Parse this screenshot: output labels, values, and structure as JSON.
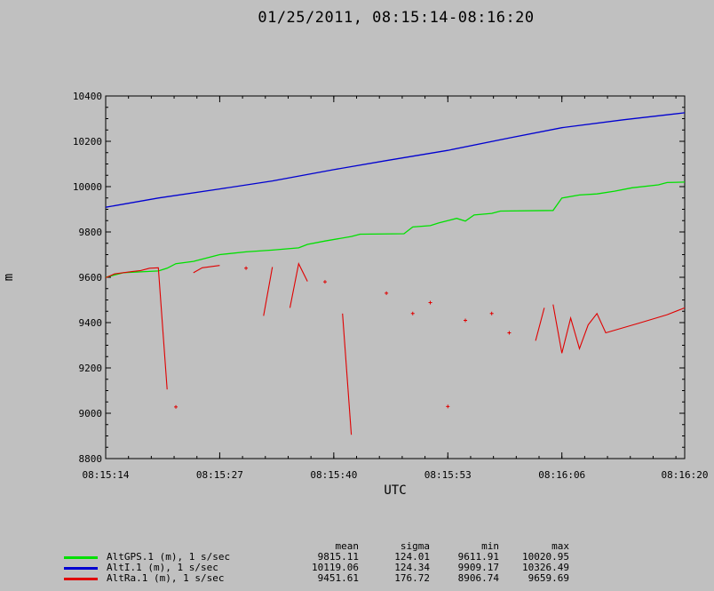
{
  "title": "01/25/2011, 08:15:14-08:16:20",
  "chart_data": {
    "type": "line",
    "xlabel": "UTC",
    "ylabel": "m",
    "xlim": [
      "08:15:14",
      "08:16:20"
    ],
    "ylim": [
      8800,
      10400
    ],
    "x_ticks": [
      "08:15:14",
      "08:15:27",
      "08:15:40",
      "08:15:53",
      "08:16:06",
      "08:16:20"
    ],
    "y_ticks": [
      8800,
      9000,
      9200,
      9400,
      9600,
      9800,
      10000,
      10200,
      10400
    ],
    "legend_position": "bottom-left",
    "series": [
      {
        "name": "AltGPS.1 (m), 1 s/sec",
        "color": "#00e000",
        "points": [
          [
            "08:15:14",
            9600
          ],
          [
            "08:15:16",
            9620
          ],
          [
            "08:15:20",
            9628
          ],
          [
            "08:15:21",
            9640
          ],
          [
            "08:15:22",
            9660
          ],
          [
            "08:15:24",
            9670
          ],
          [
            "08:15:27",
            9700
          ],
          [
            "08:15:30",
            9712
          ],
          [
            "08:15:33",
            9720
          ],
          [
            "08:15:36",
            9730
          ],
          [
            "08:15:37",
            9745
          ],
          [
            "08:15:39",
            9760
          ],
          [
            "08:15:42",
            9780
          ],
          [
            "08:15:43",
            9790
          ],
          [
            "08:15:48",
            9792
          ],
          [
            "08:15:49",
            9822
          ],
          [
            "08:15:51",
            9828
          ],
          [
            "08:15:52",
            9840
          ],
          [
            "08:15:53",
            9850
          ],
          [
            "08:15:54",
            9860
          ],
          [
            "08:15:55",
            9848
          ],
          [
            "08:15:56",
            9875
          ],
          [
            "08:15:58",
            9882
          ],
          [
            "08:15:59",
            9892
          ],
          [
            "08:16:05",
            9895
          ],
          [
            "08:16:06",
            9950
          ],
          [
            "08:16:08",
            9963
          ],
          [
            "08:16:10",
            9968
          ],
          [
            "08:16:12",
            9980
          ],
          [
            "08:16:14",
            9995
          ],
          [
            "08:16:17",
            10008
          ],
          [
            "08:16:18",
            10018
          ],
          [
            "08:16:20",
            10020
          ]
        ]
      },
      {
        "name": "AltI.1 (m), 1 s/sec",
        "color": "#0000d0",
        "points": [
          [
            "08:15:14",
            9909
          ],
          [
            "08:15:20",
            9950
          ],
          [
            "08:15:27",
            9990
          ],
          [
            "08:15:33",
            10025
          ],
          [
            "08:15:40",
            10075
          ],
          [
            "08:15:46",
            10115
          ],
          [
            "08:15:53",
            10160
          ],
          [
            "08:16:00",
            10215
          ],
          [
            "08:16:06",
            10260
          ],
          [
            "08:16:13",
            10295
          ],
          [
            "08:16:20",
            10326
          ]
        ]
      },
      {
        "name": "AltRa.1 (m), 1 s/sec",
        "color": "#e00000",
        "segments": [
          [
            [
              "08:15:14",
              9598
            ],
            [
              "08:15:15",
              9615
            ],
            [
              "08:15:17",
              9625
            ],
            [
              "08:15:18",
              9630
            ],
            [
              "08:15:19",
              9640
            ],
            [
              "08:15:20",
              9642
            ],
            [
              "08:15:21",
              9105
            ]
          ],
          [
            [
              "08:15:24",
              9620
            ],
            [
              "08:15:25",
              9642
            ],
            [
              "08:15:27",
              9652
            ]
          ],
          [
            [
              "08:15:32",
              9430
            ],
            [
              "08:15:33",
              9645
            ]
          ],
          [
            [
              "08:15:35",
              9465
            ],
            [
              "08:15:36",
              9660
            ],
            [
              "08:15:37",
              9582
            ]
          ],
          [
            [
              "08:15:41",
              9440
            ],
            [
              "08:15:42",
              8905
            ]
          ],
          [
            [
              "08:16:03",
              9320
            ],
            [
              "08:16:04",
              9465
            ]
          ],
          [
            [
              "08:16:05",
              9480
            ],
            [
              "08:16:06",
              9265
            ],
            [
              "08:16:07",
              9420
            ],
            [
              "08:16:08",
              9285
            ],
            [
              "08:16:09",
              9390
            ],
            [
              "08:16:10",
              9440
            ],
            [
              "08:16:11",
              9355
            ],
            [
              "08:16:15",
              9400
            ],
            [
              "08:16:18",
              9435
            ],
            [
              "08:16:20",
              9465
            ]
          ]
        ],
        "markers": [
          [
            "08:15:22",
            9028
          ],
          [
            "08:15:30",
            9640
          ],
          [
            "08:15:39",
            9580
          ],
          [
            "08:15:46",
            9530
          ],
          [
            "08:15:49",
            9440
          ],
          [
            "08:15:51",
            9488
          ],
          [
            "08:15:53",
            9030
          ],
          [
            "08:15:55",
            9410
          ],
          [
            "08:15:58",
            9440
          ],
          [
            "08:16:00",
            9355
          ]
        ]
      }
    ]
  },
  "stats": {
    "headers": [
      "mean",
      "sigma",
      "min",
      "max"
    ],
    "rows": [
      {
        "name": "AltGPS.1 (m), 1 s/sec",
        "color": "#00e000",
        "mean": "9815.11",
        "sigma": "124.01",
        "min": "9611.91",
        "max": "10020.95"
      },
      {
        "name": "AltI.1 (m), 1 s/sec",
        "color": "#0000d0",
        "mean": "10119.06",
        "sigma": "124.34",
        "min": "9909.17",
        "max": "10326.49"
      },
      {
        "name": "AltRa.1 (m), 1 s/sec",
        "color": "#e00000",
        "mean": "9451.61",
        "sigma": "176.72",
        "min": "8906.74",
        "max": "9659.69"
      }
    ]
  }
}
